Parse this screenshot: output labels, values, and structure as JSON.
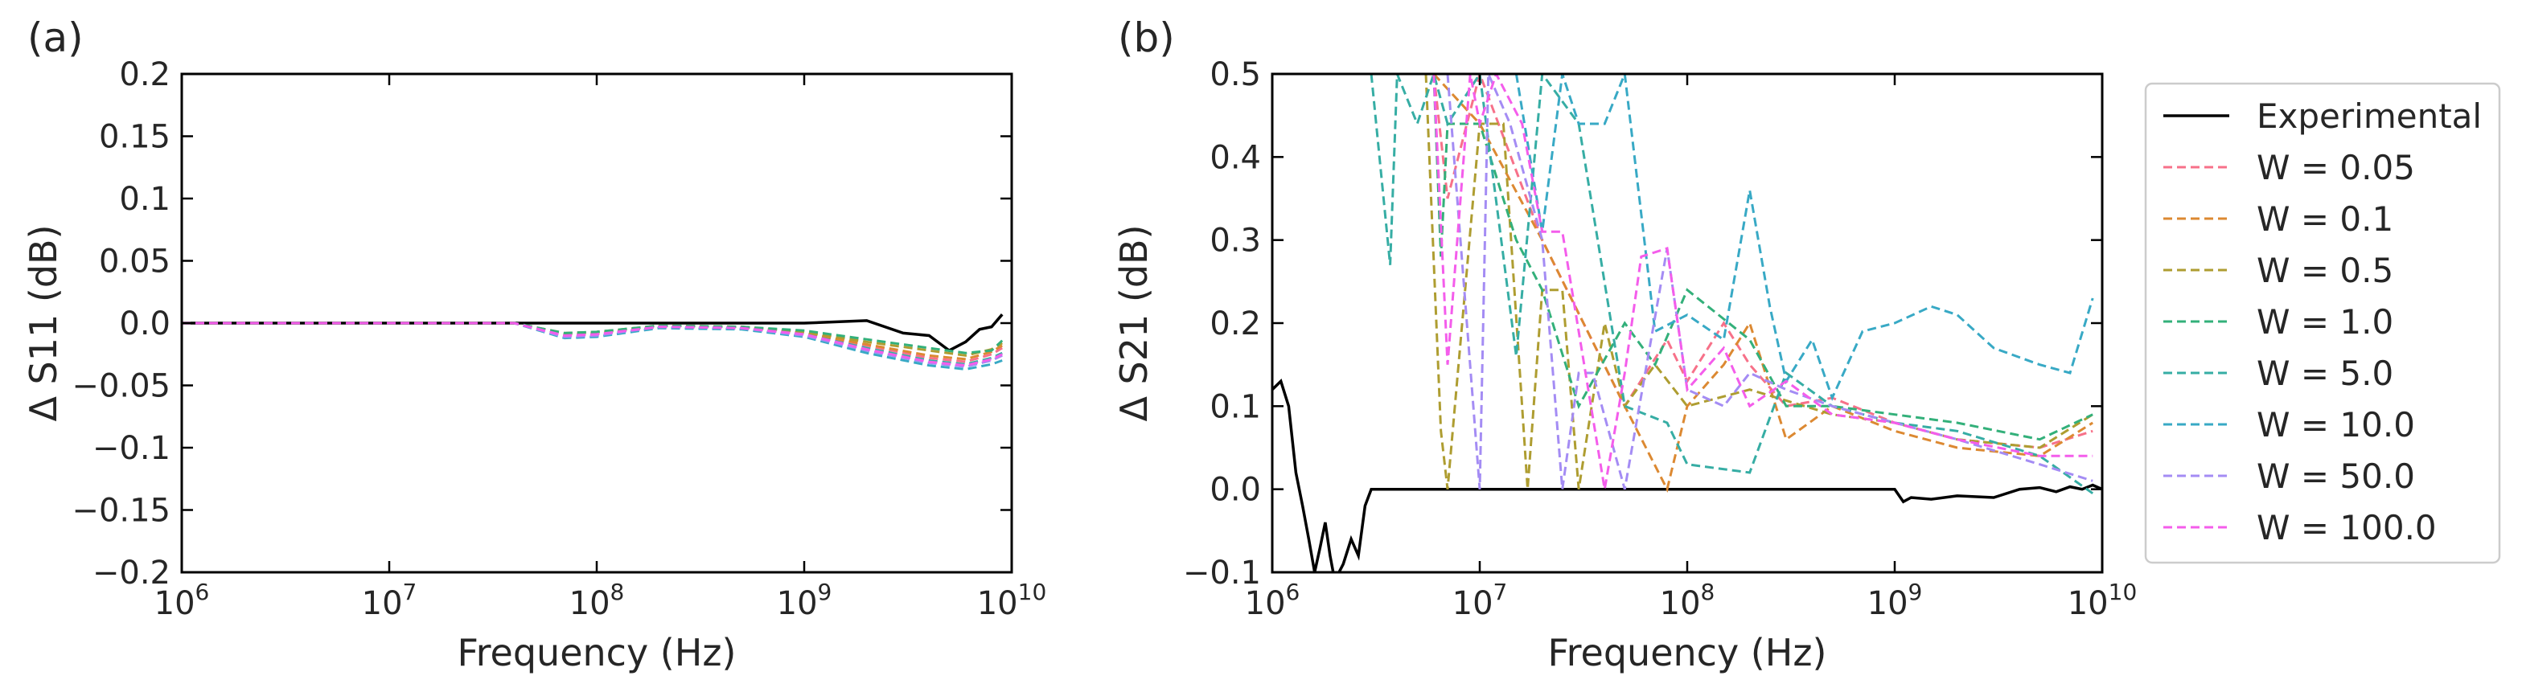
{
  "chart_data": [
    {
      "type": "line",
      "panel_label": "(a)",
      "xlabel": "Frequency (Hz)",
      "ylabel": "Δ S11 (dB)",
      "xscale": "log",
      "xlim": [
        1000000,
        10000000000
      ],
      "ylim": [
        -0.2,
        0.2
      ],
      "x_ticks": [
        "10^6",
        "10^7",
        "10^8",
        "10^9",
        "10^10"
      ],
      "y_ticks": [
        "0.2",
        "0.15",
        "0.1",
        "0.05",
        "0.0",
        "−0.05",
        "−0.1",
        "−0.15",
        "−0.2"
      ],
      "y_tick_values": [
        0.2,
        0.15,
        0.1,
        0.05,
        0.0,
        -0.05,
        -0.1,
        -0.15,
        -0.2
      ],
      "series": [
        {
          "name": "Experimental",
          "color": "#000000",
          "style": "solid",
          "x": [
            1000000,
            10000000,
            100000000,
            1000000000,
            2000000000,
            3000000000,
            4000000000,
            5000000000,
            6000000000,
            7000000000,
            8000000000,
            9000000000
          ],
          "y": [
            0,
            0,
            0,
            0,
            0.002,
            -0.008,
            -0.01,
            -0.022,
            -0.015,
            -0.005,
            -0.003,
            0.007
          ]
        },
        {
          "name": "W = 0.05",
          "color": "#f77189",
          "style": "dashed",
          "x": [
            1000000,
            40000000,
            70000000,
            100000000,
            200000000,
            500000000,
            1000000000,
            2000000000,
            4000000000,
            6000000000,
            8000000000,
            9000000000
          ],
          "y": [
            0,
            0,
            -0.009,
            -0.008,
            -0.002,
            -0.003,
            -0.008,
            -0.018,
            -0.028,
            -0.031,
            -0.025,
            -0.02
          ]
        },
        {
          "name": "W = 0.1",
          "color": "#dc8932",
          "style": "dashed",
          "x": [
            1000000,
            40000000,
            70000000,
            100000000,
            200000000,
            500000000,
            1000000000,
            2000000000,
            4000000000,
            6000000000,
            8000000000,
            9000000000
          ],
          "y": [
            0,
            0,
            -0.009,
            -0.008,
            -0.002,
            -0.003,
            -0.008,
            -0.017,
            -0.026,
            -0.029,
            -0.023,
            -0.018
          ]
        },
        {
          "name": "W = 0.5",
          "color": "#ae9d31",
          "style": "dashed",
          "x": [
            1000000,
            40000000,
            70000000,
            100000000,
            200000000,
            500000000,
            1000000000,
            2000000000,
            4000000000,
            6000000000,
            8000000000,
            9000000000
          ],
          "y": [
            0,
            0,
            -0.008,
            -0.007,
            -0.002,
            -0.003,
            -0.007,
            -0.015,
            -0.022,
            -0.026,
            -0.021,
            -0.016
          ]
        },
        {
          "name": "W = 1.0",
          "color": "#33b07a",
          "style": "dashed",
          "x": [
            1000000,
            40000000,
            70000000,
            100000000,
            200000000,
            500000000,
            1000000000,
            2000000000,
            4000000000,
            6000000000,
            8000000000,
            9000000000
          ],
          "y": [
            0,
            0,
            -0.008,
            -0.007,
            -0.002,
            -0.003,
            -0.006,
            -0.013,
            -0.02,
            -0.024,
            -0.022,
            -0.014
          ]
        },
        {
          "name": "W = 5.0",
          "color": "#36ada4",
          "style": "dashed",
          "x": [
            1000000,
            40000000,
            70000000,
            100000000,
            200000000,
            500000000,
            1000000000,
            2000000000,
            4000000000,
            6000000000,
            8000000000,
            9000000000
          ],
          "y": [
            0,
            0,
            -0.01,
            -0.009,
            -0.003,
            -0.004,
            -0.009,
            -0.02,
            -0.03,
            -0.033,
            -0.028,
            -0.024
          ]
        },
        {
          "name": "W = 10.0",
          "color": "#38a9c5",
          "style": "dashed",
          "x": [
            1000000,
            40000000,
            70000000,
            100000000,
            200000000,
            500000000,
            1000000000,
            2000000000,
            4000000000,
            6000000000,
            8000000000,
            9000000000
          ],
          "y": [
            0,
            0,
            -0.012,
            -0.011,
            -0.004,
            -0.005,
            -0.011,
            -0.024,
            -0.034,
            -0.037,
            -0.033,
            -0.03
          ]
        },
        {
          "name": "W = 50.0",
          "color": "#a48cf4",
          "style": "dashed",
          "x": [
            1000000,
            40000000,
            70000000,
            100000000,
            200000000,
            500000000,
            1000000000,
            2000000000,
            4000000000,
            6000000000,
            8000000000,
            9000000000
          ],
          "y": [
            0,
            0,
            -0.011,
            -0.01,
            -0.003,
            -0.004,
            -0.01,
            -0.022,
            -0.032,
            -0.035,
            -0.03,
            -0.026
          ]
        },
        {
          "name": "W = 100.0",
          "color": "#f45deb",
          "style": "dashed",
          "x": [
            1000000,
            40000000,
            70000000,
            100000000,
            200000000,
            500000000,
            1000000000,
            2000000000,
            4000000000,
            6000000000,
            8000000000,
            9000000000
          ],
          "y": [
            0,
            0,
            -0.01,
            -0.009,
            -0.003,
            -0.004,
            -0.009,
            -0.021,
            -0.031,
            -0.034,
            -0.029,
            -0.025
          ]
        }
      ]
    },
    {
      "type": "line",
      "panel_label": "(b)",
      "xlabel": "Frequency (Hz)",
      "ylabel": "Δ S21 (dB)",
      "xscale": "log",
      "xlim": [
        1000000,
        10000000000
      ],
      "ylim": [
        -0.1,
        0.5
      ],
      "x_ticks": [
        "10^6",
        "10^7",
        "10^8",
        "10^9",
        "10^10"
      ],
      "y_ticks": [
        "0.5",
        "0.4",
        "0.3",
        "0.2",
        "0.1",
        "0.0",
        "−0.1"
      ],
      "y_tick_values": [
        0.5,
        0.4,
        0.3,
        0.2,
        0.1,
        0.0,
        -0.1
      ],
      "legend_position": "outside-right",
      "series": [
        {
          "name": "Experimental",
          "color": "#000000",
          "style": "solid",
          "x": [
            1000000,
            1100000,
            1200000,
            1300000,
            1400000,
            1500000,
            1600000,
            1700000,
            1800000,
            1900000,
            2000000,
            2200000,
            2400000,
            2600000,
            2800000,
            3000000,
            10000000,
            100000000,
            1000000000,
            1100000000,
            1200000000,
            1500000000,
            2000000000,
            3000000000,
            4000000000,
            5000000000,
            6000000000,
            7000000000,
            8000000000,
            9000000000,
            10000000000
          ],
          "y": [
            0.12,
            0.13,
            0.1,
            0.02,
            -0.02,
            -0.06,
            -0.1,
            -0.07,
            -0.04,
            -0.08,
            -0.11,
            -0.09,
            -0.06,
            -0.08,
            -0.02,
            0,
            0,
            0,
            0,
            -0.015,
            -0.01,
            -0.012,
            -0.008,
            -0.01,
            0,
            0.002,
            -0.003,
            0.003,
            0,
            0.005,
            0
          ]
        },
        {
          "name": "W = 0.05",
          "color": "#f77189",
          "style": "dashed",
          "x": [
            6000000,
            7000000,
            10000000,
            20000000,
            50000000,
            80000000,
            100000000,
            150000000,
            200000000,
            300000000,
            500000000,
            1000000000,
            2000000000,
            5000000000,
            9000000000
          ],
          "y": [
            0.5,
            0.35,
            0.5,
            0.3,
            0.1,
            0.18,
            0.13,
            0.2,
            0.15,
            0.1,
            0.11,
            0.08,
            0.06,
            0.05,
            0.07
          ]
        },
        {
          "name": "W = 0.1",
          "color": "#dc8932",
          "style": "dashed",
          "x": [
            6000000,
            10000000,
            20000000,
            50000000,
            80000000,
            100000000,
            150000000,
            200000000,
            300000000,
            500000000,
            1000000000,
            2000000000,
            5000000000,
            9000000000
          ],
          "y": [
            0.5,
            0.44,
            0.3,
            0.1,
            0.0,
            0.1,
            0.15,
            0.2,
            0.06,
            0.1,
            0.07,
            0.05,
            0.04,
            0.08
          ]
        },
        {
          "name": "W = 0.5",
          "color": "#ae9d31",
          "style": "dashed",
          "x": [
            5500000,
            6500000,
            7000000,
            10000000,
            13000000,
            17000000,
            20000000,
            25000000,
            30000000,
            40000000,
            50000000,
            70000000,
            100000000,
            200000000,
            500000000,
            1000000000,
            2000000000,
            5000000000,
            9000000000
          ],
          "y": [
            0.5,
            0.07,
            0.0,
            0.44,
            0.44,
            0.0,
            0.24,
            0.24,
            0.0,
            0.2,
            0.1,
            0.15,
            0.1,
            0.12,
            0.09,
            0.08,
            0.06,
            0.05,
            0.09
          ]
        },
        {
          "name": "W = 1.0",
          "color": "#33b07a",
          "style": "dashed",
          "x": [
            6000000,
            6500000,
            7000000,
            10000000,
            15000000,
            20000000,
            30000000,
            50000000,
            70000000,
            100000000,
            200000000,
            300000000,
            500000000,
            1000000000,
            2000000000,
            5000000000,
            9000000000
          ],
          "y": [
            0.5,
            0.28,
            0.44,
            0.44,
            0.3,
            0.24,
            0.1,
            0.2,
            0.15,
            0.24,
            0.18,
            0.1,
            0.1,
            0.09,
            0.08,
            0.06,
            0.09
          ]
        },
        {
          "name": "W = 5.0",
          "color": "#36ada4",
          "style": "dashed",
          "x": [
            3000000,
            3700000,
            4000000,
            5000000,
            6000000,
            7000000,
            10000000,
            15000000,
            20000000,
            30000000,
            50000000,
            80000000,
            100000000,
            200000000,
            300000000,
            500000000,
            1000000000,
            2000000000,
            5000000000,
            9000000000
          ],
          "y": [
            0.5,
            0.27,
            0.5,
            0.44,
            0.5,
            0.44,
            0.5,
            0.16,
            0.5,
            0.44,
            0.1,
            0.08,
            0.03,
            0.02,
            0.14,
            0.1,
            0.08,
            0.07,
            0.04,
            -0.005
          ]
        },
        {
          "name": "W = 10.0",
          "color": "#38a9c5",
          "style": "dashed",
          "x": [
            15000000,
            20000000,
            25000000,
            30000000,
            40000000,
            50000000,
            70000000,
            100000000,
            150000000,
            200000000,
            250000000,
            300000000,
            400000000,
            500000000,
            700000000,
            1000000000,
            1500000000,
            2000000000,
            3000000000,
            5000000000,
            7000000000,
            9000000000
          ],
          "y": [
            0.5,
            0.31,
            0.5,
            0.44,
            0.44,
            0.5,
            0.19,
            0.21,
            0.18,
            0.36,
            0.22,
            0.13,
            0.18,
            0.11,
            0.19,
            0.2,
            0.22,
            0.21,
            0.17,
            0.15,
            0.14,
            0.23
          ]
        },
        {
          "name": "W = 50.0",
          "color": "#a48cf4",
          "style": "dashed",
          "x": [
            7000000,
            10000000,
            11000000,
            14000000,
            20000000,
            25000000,
            30000000,
            35000000,
            50000000,
            80000000,
            100000000,
            150000000,
            200000000,
            300000000,
            500000000,
            1000000000,
            2000000000,
            5000000000,
            9000000000
          ],
          "y": [
            0.5,
            0.0,
            0.5,
            0.44,
            0.3,
            0.0,
            0.14,
            0.14,
            0.0,
            0.29,
            0.12,
            0.1,
            0.14,
            0.12,
            0.1,
            0.08,
            0.06,
            0.03,
            0.01
          ]
        },
        {
          "name": "W = 100.0",
          "color": "#f45deb",
          "style": "dashed",
          "x": [
            6000000,
            7000000,
            9000000,
            10000000,
            12000000,
            16000000,
            20000000,
            25000000,
            40000000,
            50000000,
            60000000,
            80000000,
            100000000,
            150000000,
            200000000,
            300000000,
            500000000,
            1000000000,
            2000000000,
            5000000000,
            9000000000
          ],
          "y": [
            0.5,
            0.15,
            0.5,
            0.44,
            0.5,
            0.44,
            0.31,
            0.31,
            0.0,
            0.14,
            0.28,
            0.29,
            0.12,
            0.17,
            0.1,
            0.13,
            0.09,
            0.08,
            0.06,
            0.04,
            0.04
          ]
        }
      ]
    }
  ]
}
